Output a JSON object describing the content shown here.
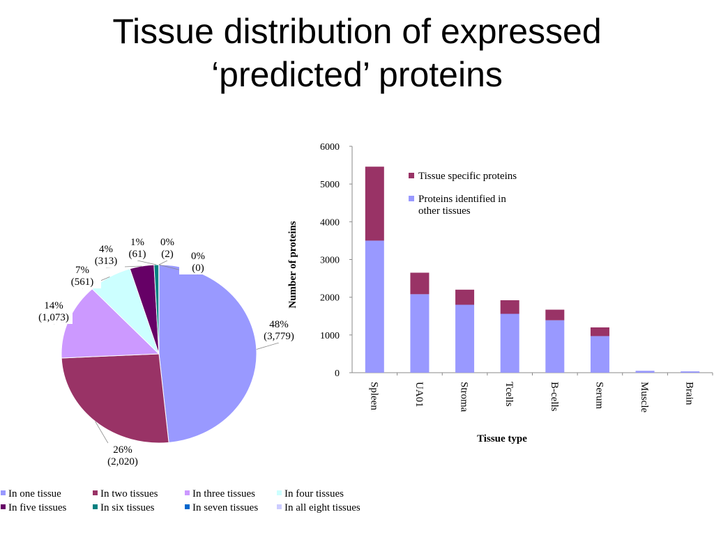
{
  "title": {
    "line1": "Tissue distribution of expressed",
    "line2": "‘predicted’ proteins"
  },
  "chart_data": [
    {
      "type": "pie",
      "labels": [
        "In one tissue",
        "In two tissues",
        "In three tissues",
        "In four tissues",
        "In five tissues",
        "In six tissues",
        "In seven tissues",
        "In all eight tissues"
      ],
      "values": [
        3779,
        2020,
        1073,
        561,
        313,
        61,
        2,
        0
      ],
      "percent_labels": [
        "48%",
        "26%",
        "14%",
        "7%",
        "4%",
        "1%",
        "0%",
        "0%"
      ],
      "count_labels": [
        "(3,779)",
        "(2,020)",
        "(1,073)",
        "(561)",
        "(313)",
        "(61)",
        "(2)",
        "(0)"
      ],
      "colors": [
        "#9999ff",
        "#993366",
        "#cc99ff",
        "#ccffff",
        "#660066",
        "#008080",
        "#0066cc",
        "#ccccff"
      ],
      "legend_placement": "bottom"
    },
    {
      "type": "bar",
      "stacked": true,
      "categories": [
        "Spleen",
        "UA01",
        "Stroma",
        "Tcells",
        "B-cells",
        "Serum",
        "Muscle",
        "Brain"
      ],
      "series": [
        {
          "name": "Proteins identified in other tissues",
          "values": [
            3500,
            2080,
            1800,
            1560,
            1390,
            970,
            50,
            35
          ],
          "color": "#9999ff"
        },
        {
          "name": "Tissue specific proteins",
          "values": [
            1960,
            570,
            400,
            360,
            280,
            230,
            0,
            0
          ],
          "color": "#993366"
        }
      ],
      "legend_entries": [
        {
          "color": "#993366",
          "lines": [
            "Tissue specific proteins"
          ]
        },
        {
          "color": "#9999ff",
          "lines": [
            "Proteins identified in",
            "other tissues"
          ]
        }
      ],
      "xlabel": "Tissue type",
      "ylabel": "Number of proteins",
      "yticks": [
        "0",
        "1000",
        "2000",
        "3000",
        "4000",
        "5000",
        "6000"
      ],
      "ylim": [
        0,
        6000
      ],
      "grid": false,
      "legend_placement": "top-right"
    }
  ]
}
